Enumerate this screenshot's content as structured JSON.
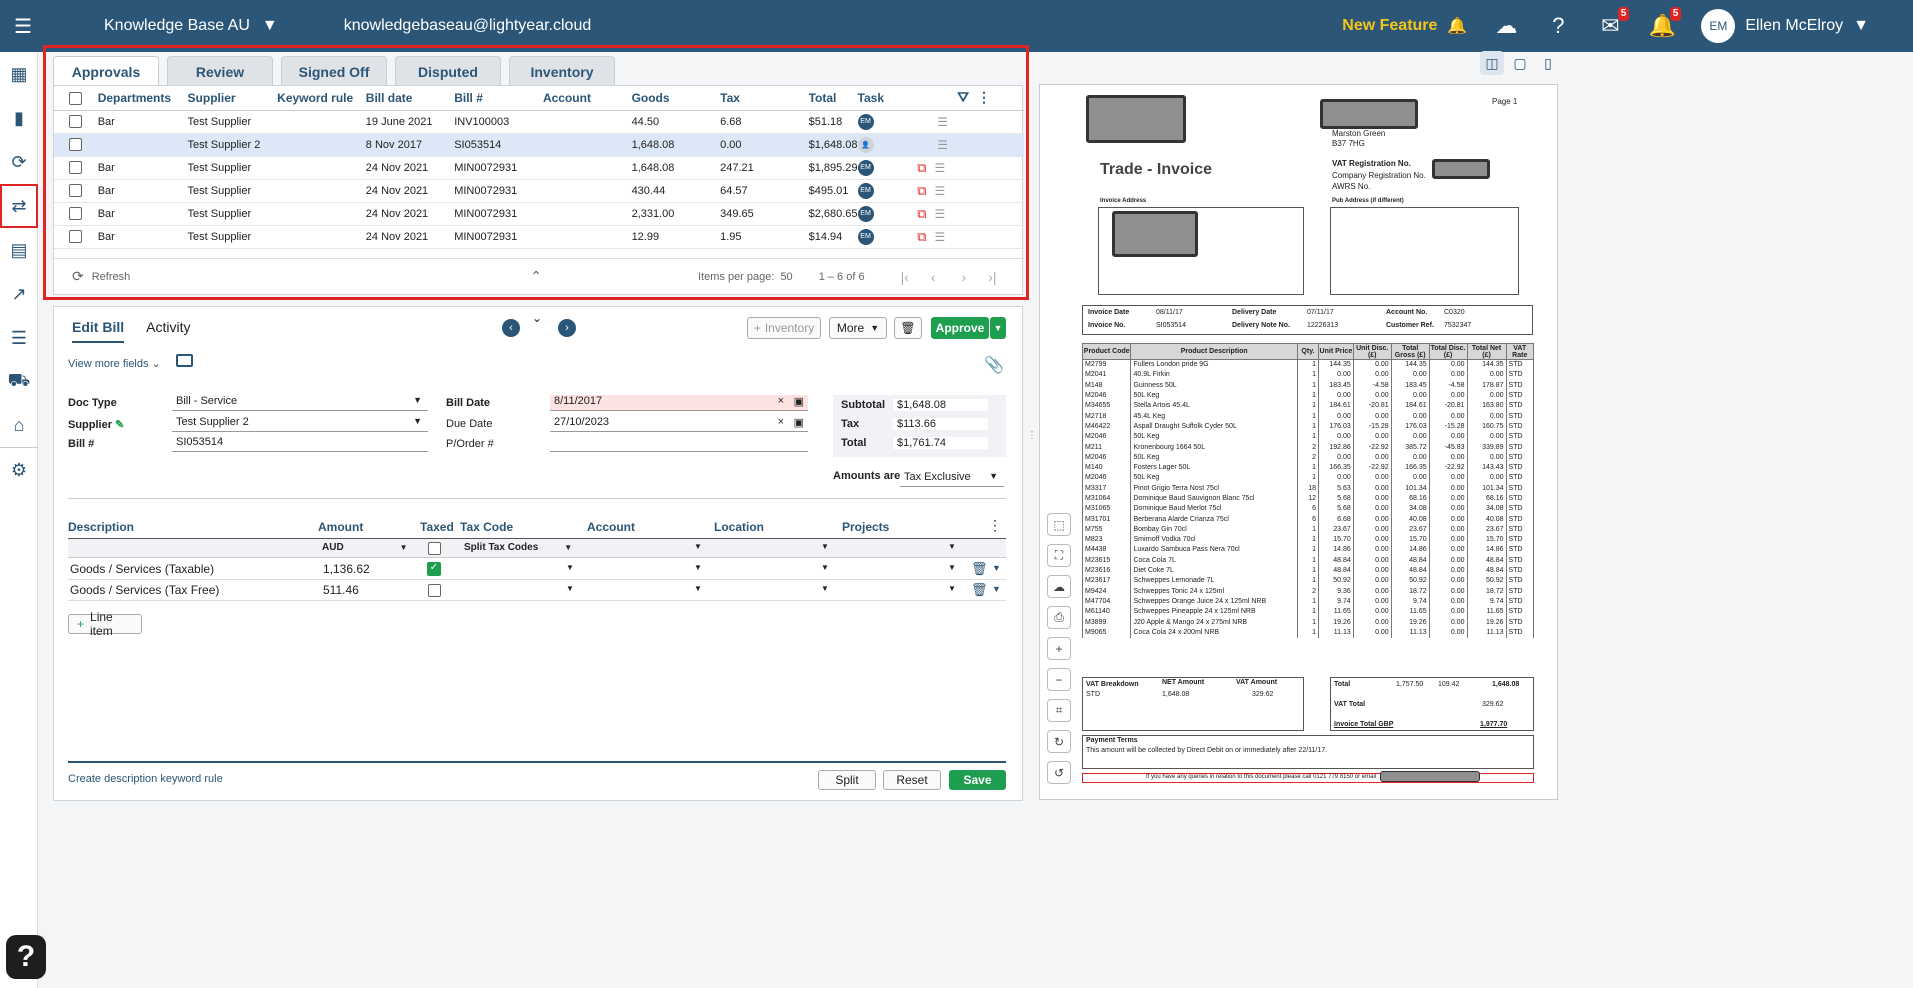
{
  "topbar": {
    "org": "Knowledge Base AU",
    "email": "knowledgebaseau@lightyear.cloud",
    "new_feature": "New Feature",
    "mail_count": "5",
    "notif_count": "5",
    "avatar_initials": "EM",
    "user_name": "Ellen McElroy"
  },
  "tabs": [
    "Approvals",
    "Review",
    "Signed Off",
    "Disputed",
    "Inventory"
  ],
  "grid": {
    "headers": [
      "Departments",
      "Supplier",
      "Keyword rule",
      "Bill date",
      "Bill #",
      "Account",
      "Goods",
      "Tax",
      "Total",
      "Task"
    ],
    "rows": [
      {
        "dept": "Bar",
        "supplier": "Test Supplier",
        "keyword": "",
        "date": "19 June 2021",
        "bill": "INV100003",
        "account": "",
        "goods": "44.50",
        "tax": "6.68",
        "total": "$51.18",
        "task": "EM"
      },
      {
        "dept": "",
        "supplier": "Test Supplier 2",
        "keyword": "",
        "date": "8 Nov 2017",
        "bill": "SI053514",
        "account": "",
        "goods": "1,648.08",
        "tax": "0.00",
        "total": "$1,648.08",
        "task": ""
      },
      {
        "dept": "Bar",
        "supplier": "Test Supplier",
        "keyword": "",
        "date": "24 Nov 2021",
        "bill": "MIN0072931",
        "account": "",
        "goods": "1,648.08",
        "tax": "247.21",
        "total": "$1,895.29",
        "task": "EM"
      },
      {
        "dept": "Bar",
        "supplier": "Test Supplier",
        "keyword": "",
        "date": "24 Nov 2021",
        "bill": "MIN0072931",
        "account": "",
        "goods": "430.44",
        "tax": "64.57",
        "total": "$495.01",
        "task": "EM"
      },
      {
        "dept": "Bar",
        "supplier": "Test Supplier",
        "keyword": "",
        "date": "24 Nov 2021",
        "bill": "MIN0072931",
        "account": "",
        "goods": "2,331.00",
        "tax": "349.65",
        "total": "$2,680.65",
        "task": "EM"
      },
      {
        "dept": "Bar",
        "supplier": "Test Supplier",
        "keyword": "",
        "date": "24 Nov 2021",
        "bill": "MIN0072931",
        "account": "",
        "goods": "12.99",
        "tax": "1.95",
        "total": "$14.94",
        "task": "EM"
      }
    ],
    "refresh": "Refresh",
    "items_per_page_label": "Items per page:",
    "items_per_page": "50",
    "range": "1 – 6 of 6"
  },
  "edit": {
    "tab_edit": "Edit Bill",
    "tab_activity": "Activity",
    "inventory_btn": "Inventory",
    "more_btn": "More",
    "approve_btn": "Approve",
    "view_more": "View more fields",
    "doc_type_label": "Doc Type",
    "doc_type": "Bill - Service",
    "supplier_label": "Supplier",
    "supplier": "Test Supplier 2",
    "bill_label": "Bill #",
    "bill": "SI053514",
    "bill_date_label": "Bill Date",
    "bill_date": "8/11/2017",
    "due_date_label": "Due Date",
    "due_date": "27/10/2023",
    "porder_label": "P/Order #",
    "subtotal_label": "Subtotal",
    "subtotal": "$1,648.08",
    "tax_label": "Tax",
    "tax": "$113.66",
    "total_label": "Total",
    "total": "$1,761.74",
    "amounts_are_label": "Amounts are",
    "amounts_are": "Tax Exclusive",
    "line_headers": [
      "Description",
      "Amount",
      "Taxed",
      "Tax Code",
      "Account",
      "Location",
      "Projects"
    ],
    "currency": "AUD",
    "split_tax": "Split Tax Codes",
    "lines": [
      {
        "desc": "Goods / Services (Taxable)",
        "amount": "1,136.62",
        "taxed": true
      },
      {
        "desc": "Goods / Services (Tax Free)",
        "amount": "511.46",
        "taxed": false
      }
    ],
    "line_item_btn": "Line item",
    "keyword_rule_link": "Create description keyword rule",
    "split_btn": "Split",
    "reset_btn": "Reset",
    "save_btn": "Save"
  },
  "invoice": {
    "page": "Page 1",
    "title": "Trade - Invoice",
    "addr1": "Marston Green",
    "addr2": "B37 7HG",
    "vat_reg": "VAT Registration No.",
    "company_reg": "Company Registration No.",
    "awrs": "AWRS No.",
    "invoice_address": "Invoice Address",
    "pub_address": "Pub Address (if different)",
    "invoice_date_label": "Invoice Date",
    "invoice_date": "08/11/17",
    "invoice_no_label": "Invoice No.",
    "invoice_no": "SI053514",
    "delivery_date_label": "Delivery Date",
    "delivery_date": "07/11/17",
    "delivery_note_label": "Delivery Note No.",
    "delivery_note": "12226313",
    "account_label": "Account No.",
    "account": "C0320",
    "customer_ref_label": "Customer Ref.",
    "customer_ref": "7532347",
    "headers": [
      "Product Code",
      "Product Description",
      "Qty.",
      "Unit Price",
      "Unit Disc. (£)",
      "Total Gross (£)",
      "Total Disc. (£)",
      "Total Net (£)",
      "VAT Rate"
    ],
    "items": [
      [
        "M2799",
        "Fullers London pride 9G",
        "1",
        "144.35",
        "0.00",
        "144.35",
        "0.00",
        "144.35",
        "STD"
      ],
      [
        "M2041",
        "40.9L Firkin",
        "1",
        "0.00",
        "0.00",
        "0.00",
        "0.00",
        "0.00",
        "STD"
      ],
      [
        "M148",
        "Guinness 50L",
        "1",
        "183.45",
        "-4.58",
        "183.45",
        "-4.58",
        "178.87",
        "STD"
      ],
      [
        "M2046",
        "50L Keg",
        "1",
        "0.00",
        "0.00",
        "0.00",
        "0.00",
        "0.00",
        "STD"
      ],
      [
        "M34655",
        "Stella Artois 45.4L",
        "1",
        "184.61",
        "-20.81",
        "184.61",
        "-20.81",
        "163.80",
        "STD"
      ],
      [
        "M2718",
        "45.4L Keg",
        "1",
        "0.00",
        "0.00",
        "0.00",
        "0.00",
        "0.00",
        "STD"
      ],
      [
        "M46422",
        "Aspall Draught Suffolk Cyder 50L",
        "1",
        "176.03",
        "-15.28",
        "176.03",
        "-15.28",
        "160.75",
        "STD"
      ],
      [
        "M2046",
        "50L Keg",
        "1",
        "0.00",
        "0.00",
        "0.00",
        "0.00",
        "0.00",
        "STD"
      ],
      [
        "M211",
        "Kronenbourg 1664 50L",
        "2",
        "192.86",
        "-22.92",
        "385.72",
        "-45.83",
        "339.89",
        "STD"
      ],
      [
        "M2046",
        "50L Keg",
        "2",
        "0.00",
        "0.00",
        "0.00",
        "0.00",
        "0.00",
        "STD"
      ],
      [
        "M140",
        "Fosters Lager 50L",
        "1",
        "166.35",
        "-22.92",
        "166.35",
        "-22.92",
        "143.43",
        "STD"
      ],
      [
        "M2046",
        "50L Keg",
        "1",
        "0.00",
        "0.00",
        "0.00",
        "0.00",
        "0.00",
        "STD"
      ],
      [
        "M3317",
        "Pinot Grigio Terra Nost 75cl",
        "18",
        "5.63",
        "0.00",
        "101.34",
        "0.00",
        "101.34",
        "STD"
      ],
      [
        "M31064",
        "Dominique Baud Sauvignon Blanc 75cl",
        "12",
        "5.68",
        "0.00",
        "68.16",
        "0.00",
        "68.16",
        "STD"
      ],
      [
        "M31065",
        "Dominique Baud Merlot 75cl",
        "6",
        "5.68",
        "0.00",
        "34.08",
        "0.00",
        "34.08",
        "STD"
      ],
      [
        "M31701",
        "Berberana Alarde Crianza 75cl",
        "6",
        "6.68",
        "0.00",
        "40.08",
        "0.00",
        "40.08",
        "STD"
      ],
      [
        "M755",
        "Bombay Gin 70cl",
        "1",
        "23.67",
        "0.00",
        "23.67",
        "0.00",
        "23.67",
        "STD"
      ],
      [
        "M823",
        "Smirnoff Vodka 70cl",
        "1",
        "15.70",
        "0.00",
        "15.70",
        "0.00",
        "15.70",
        "STD"
      ],
      [
        "M4438",
        "Luxardo Sambuca Pass Nera 70cl",
        "1",
        "14.86",
        "0.00",
        "14.86",
        "0.00",
        "14.86",
        "STD"
      ],
      [
        "M23615",
        "Coca Cola 7L",
        "1",
        "48.84",
        "0.00",
        "48.84",
        "0.00",
        "48.84",
        "STD"
      ],
      [
        "M23616",
        "Diet Coke 7L",
        "1",
        "48.84",
        "0.00",
        "48.84",
        "0.00",
        "48.84",
        "STD"
      ],
      [
        "M23617",
        "Schweppes Lemonade 7L",
        "1",
        "50.92",
        "0.00",
        "50.92",
        "0.00",
        "50.92",
        "STD"
      ],
      [
        "M9424",
        "Schweppes Tonic 24 x 125ml",
        "2",
        "9.36",
        "0.00",
        "18.72",
        "0.00",
        "18.72",
        "STD"
      ],
      [
        "M47704",
        "Schweppes Orange Juice 24 x 125ml NRB",
        "1",
        "9.74",
        "0.00",
        "9.74",
        "0.00",
        "9.74",
        "STD"
      ],
      [
        "M61140",
        "Schweppes Pineapple 24 x 125ml NRB",
        "1",
        "11.65",
        "0.00",
        "11.65",
        "0.00",
        "11.65",
        "STD"
      ],
      [
        "M3899",
        "J20 Apple & Mango 24 x 275ml NRB",
        "1",
        "19.26",
        "0.00",
        "19.26",
        "0.00",
        "19.26",
        "STD"
      ],
      [
        "M9065",
        "Coca Cola 24 x 200ml NRB",
        "1",
        "11.13",
        "0.00",
        "11.13",
        "0.00",
        "11.13",
        "STD"
      ]
    ],
    "vat_breakdown": "VAT Breakdown",
    "net_amount": "NET Amount",
    "vat_amount": "VAT Amount",
    "std": "STD",
    "std_net": "1,648.08",
    "std_vat": "329.62",
    "total_label": "Total",
    "total_gross": "1,757.50",
    "total_disc": "109.42",
    "total_net": "1,648.08",
    "vat_total_label": "VAT Total",
    "vat_total": "329.62",
    "invoice_total_label": "Invoice Total GBP",
    "invoice_total": "1,977.70",
    "payment_terms": "Payment Terms",
    "payment_text": "This amount will be collected by Direct Debit on or immediately after 22/11/17.",
    "footer_text": "If you have any queries in relation to this document please call 0121 779 8150 or email"
  }
}
